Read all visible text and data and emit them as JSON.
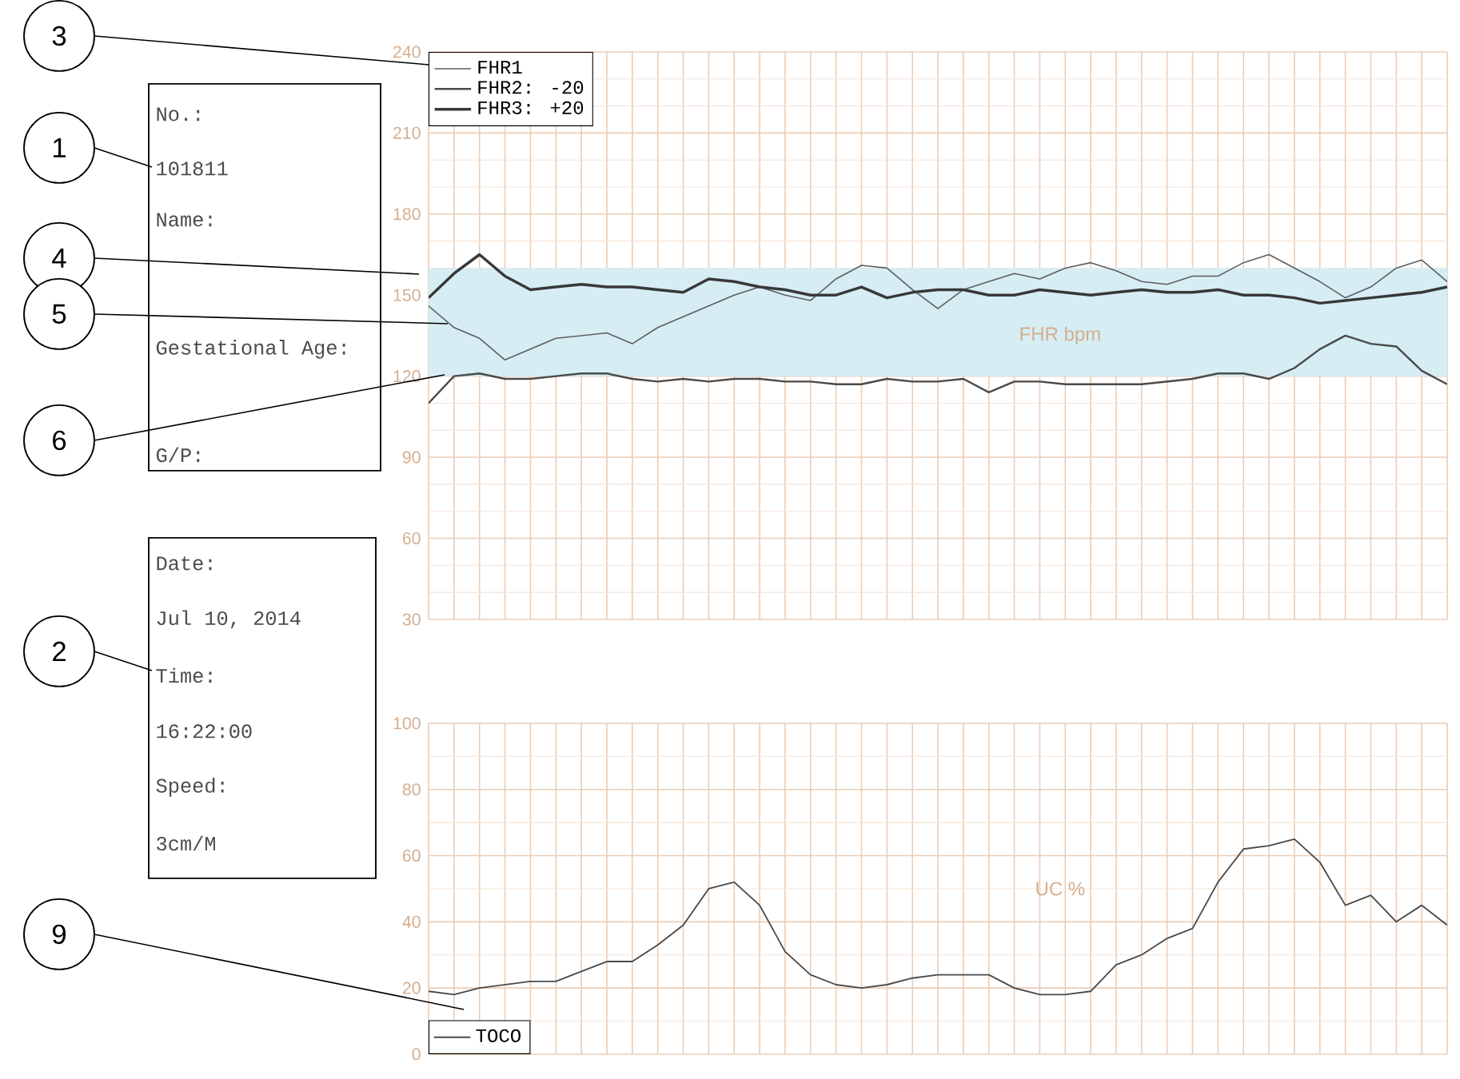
{
  "chart_data": [
    {
      "type": "line",
      "ylabel": "FHR bpm",
      "categories": [
        null,
        null,
        null,
        null,
        null,
        null,
        null,
        null,
        null,
        null,
        null,
        null,
        null,
        null,
        null,
        null,
        null,
        null,
        null,
        null,
        null,
        null,
        null,
        null,
        null,
        null,
        null,
        null,
        null,
        null,
        null,
        null,
        null,
        null,
        null,
        null,
        null,
        null,
        null,
        null,
        null
      ],
      "ylim": [
        30,
        240
      ],
      "yticks": [
        30,
        60,
        90,
        120,
        150,
        180,
        210,
        240
      ],
      "grid": true,
      "legend": "top left",
      "bands": [
        {
          "axis": "y",
          "from": 120,
          "to": 160,
          "color": "#d6edf4"
        }
      ],
      "series": [
        {
          "name": "FHR1",
          "color": "#5e5e5e",
          "values": [
            146,
            138,
            134,
            126,
            130,
            134,
            135,
            136,
            132,
            138,
            142,
            146,
            150,
            153,
            150,
            148,
            156,
            161,
            160,
            152,
            145,
            152,
            155,
            158,
            156,
            160,
            162,
            159,
            155,
            154,
            157,
            157,
            162,
            165,
            160,
            155,
            149,
            153,
            160,
            163,
            155
          ]
        },
        {
          "name": "FHR2: -20",
          "color": "#4a4a4a",
          "values": [
            110,
            120,
            121,
            119,
            119,
            120,
            121,
            121,
            119,
            118,
            119,
            118,
            119,
            119,
            118,
            118,
            117,
            117,
            119,
            118,
            118,
            119,
            114,
            118,
            118,
            117,
            117,
            117,
            117,
            118,
            119,
            121,
            121,
            119,
            123,
            130,
            135,
            132,
            131,
            122,
            117
          ]
        },
        {
          "name": "FHR3: +20",
          "color": "#383838",
          "values": [
            149,
            158,
            165,
            157,
            152,
            153,
            154,
            153,
            153,
            152,
            151,
            156,
            155,
            153,
            152,
            150,
            150,
            153,
            149,
            151,
            152,
            152,
            150,
            150,
            152,
            151,
            150,
            151,
            152,
            151,
            151,
            152,
            150,
            150,
            149,
            147,
            148,
            149,
            150,
            151,
            153
          ]
        }
      ],
      "annotations": [
        "No.:",
        "101811",
        "Name:",
        "Gestational Age:",
        "G/P:",
        "Date:",
        "Jul 10, 2014",
        "Time:",
        "16:22:00",
        "Speed:",
        "3cm/M",
        "3",
        "1",
        "4",
        "5",
        "6",
        "2",
        "9"
      ]
    },
    {
      "type": "line",
      "ylabel": "UC %",
      "categories": [
        null,
        null,
        null,
        null,
        null,
        null,
        null,
        null,
        null,
        null,
        null,
        null,
        null,
        null,
        null,
        null,
        null,
        null,
        null,
        null,
        null,
        null,
        null,
        null,
        null,
        null,
        null,
        null,
        null,
        null,
        null,
        null,
        null,
        null,
        null,
        null,
        null,
        null,
        null,
        null,
        null
      ],
      "ylim": [
        0,
        100
      ],
      "yticks": [
        0,
        20,
        40,
        60,
        80,
        100
      ],
      "grid": true,
      "legend": "bottom left",
      "series": [
        {
          "name": "TOCO",
          "color": "#4a4a4a",
          "values": [
            19,
            18,
            20,
            21,
            22,
            22,
            25,
            28,
            28,
            33,
            39,
            50,
            52,
            45,
            31,
            24,
            21,
            20,
            21,
            23,
            24,
            24,
            24,
            20,
            18,
            18,
            19,
            27,
            30,
            35,
            38,
            52,
            62,
            63,
            65,
            58,
            45,
            48,
            40,
            45,
            39
          ]
        }
      ]
    }
  ]
}
